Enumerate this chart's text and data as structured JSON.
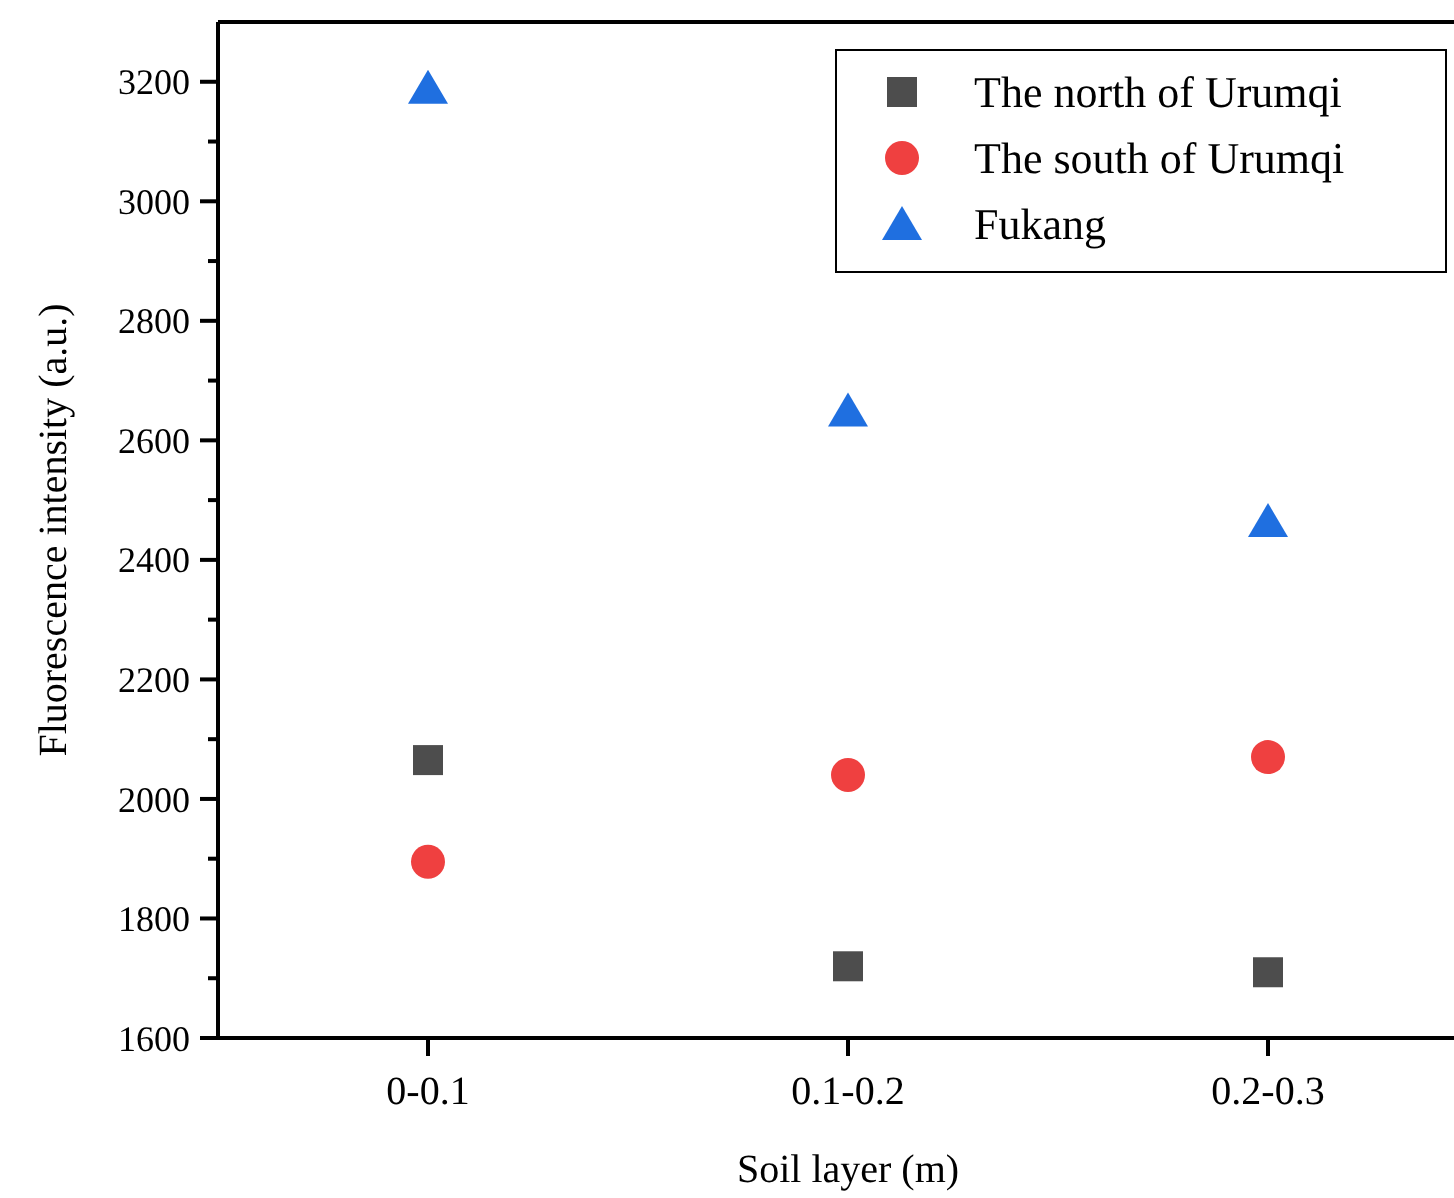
{
  "chart_data": {
    "type": "scatter",
    "xlabel": "Soil layer (m)",
    "ylabel": "Fluorescence intensity (a.u.)",
    "categories": [
      "0-0.1",
      "0.1-0.2",
      "0.2-0.3"
    ],
    "series": [
      {
        "name": "The north of Urumqi",
        "color": "#4d4d4d",
        "marker": "square",
        "values": [
          2065,
          1720,
          1710
        ]
      },
      {
        "name": "The south of Urumqi",
        "color": "#ef4040",
        "marker": "circle",
        "values": [
          1895,
          2040,
          2070
        ]
      },
      {
        "name": "Fukang",
        "color": "#1f6fe0",
        "marker": "triangle",
        "values": [
          3190,
          2650,
          2465
        ]
      }
    ],
    "ylim": [
      1600,
      3300
    ],
    "yticks": [
      1600,
      {
        "value": 1700,
        "label": null
      },
      1800,
      {
        "value": 1900,
        "label": null
      },
      2000,
      {
        "value": 2100,
        "label": null
      },
      2200,
      {
        "value": 2300,
        "label": null
      },
      2400,
      {
        "value": 2500,
        "label": null
      },
      2600,
      {
        "value": 2700,
        "label": null
      },
      2800,
      {
        "value": 2900,
        "label": null
      },
      3000,
      {
        "value": 3100,
        "label": null
      },
      3200
    ],
    "grid": false,
    "legend": "top right"
  }
}
